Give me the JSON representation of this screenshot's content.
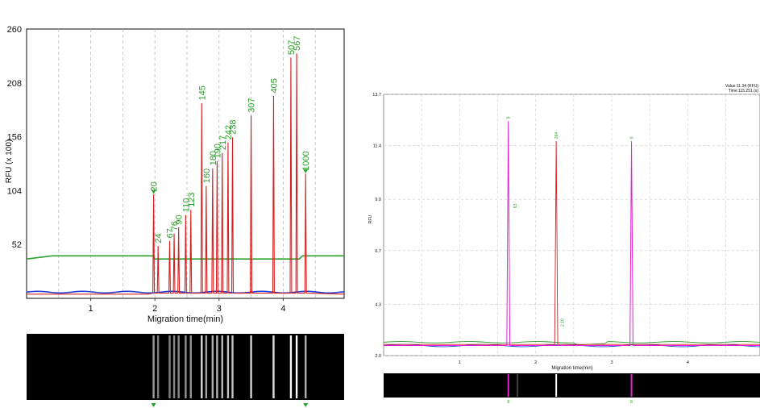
{
  "chart_data": [
    {
      "type": "line",
      "xlabel": "Migration time(min)",
      "ylabel": "RFU (x 100)",
      "xlim": [
        0.0,
        4.95
      ],
      "ylim": [
        0,
        260
      ],
      "y_ticks": [
        "52",
        "104",
        "156",
        "208",
        "260"
      ],
      "x_ticks": [
        "1",
        "2",
        "3",
        "4"
      ],
      "grid": "dashed vertical",
      "series": [
        {
          "color": "#d62020",
          "peaks": [
            {
              "x": 1.98,
              "y": 100,
              "label": "20"
            },
            {
              "x": 2.05,
              "y": 50,
              "label": "24"
            },
            {
              "x": 2.23,
              "y": 55,
              "label": "67"
            },
            {
              "x": 2.3,
              "y": 62,
              "label": "76"
            },
            {
              "x": 2.37,
              "y": 68,
              "label": "90"
            },
            {
              "x": 2.48,
              "y": 80,
              "label": "110"
            },
            {
              "x": 2.56,
              "y": 85,
              "label": "123"
            },
            {
              "x": 2.73,
              "y": 188,
              "label": "145"
            },
            {
              "x": 2.8,
              "y": 108,
              "label": "160"
            },
            {
              "x": 2.9,
              "y": 125,
              "label": "180"
            },
            {
              "x": 2.97,
              "y": 132,
              "label": "190"
            },
            {
              "x": 3.05,
              "y": 140,
              "label": "217"
            },
            {
              "x": 3.14,
              "y": 150,
              "label": "242"
            },
            {
              "x": 3.21,
              "y": 155,
              "label": "238"
            },
            {
              "x": 3.5,
              "y": 176,
              "label": "307"
            },
            {
              "x": 3.85,
              "y": 195,
              "label": "405"
            },
            {
              "x": 4.12,
              "y": 232,
              "label": "507"
            },
            {
              "x": 4.21,
              "y": 236,
              "label": "567"
            },
            {
              "x": 4.35,
              "y": 120,
              "label": "1000"
            }
          ]
        },
        {
          "color": "#2ca02c",
          "baseline": 38,
          "description_level_before_step": 41,
          "step_x": 1.98
        },
        {
          "color": "#1f3fd6",
          "baseline": 6
        }
      ],
      "marker_labels": [
        "20",
        "1000"
      ]
    },
    {
      "type": "line",
      "xlabel": "Migration time(min)",
      "ylabel": "RFU",
      "xlim": [
        0,
        4.95
      ],
      "ylim": [
        2.0,
        13.7
      ],
      "y_ticks": [
        "2.0",
        "4.3",
        "6.7",
        "9.0",
        "11.4",
        "13.7"
      ],
      "x_ticks": [
        "1",
        "2",
        "3",
        "4"
      ],
      "readout": [
        "Value:11.34 (RFU)",
        "Time:115.251 (s)"
      ],
      "series": [
        {
          "color": "#e022d6",
          "peaks": [
            {
              "x": 1.64,
              "y": 12.5,
              "label": "8"
            },
            {
              "x": 3.26,
              "y": 11.6,
              "label": "8"
            }
          ]
        },
        {
          "color": "#d62020",
          "peaks": [
            {
              "x": 2.27,
              "y": 11.6,
              "label": "264"
            }
          ]
        },
        {
          "color": "#2ca02c",
          "baseline": 2.6
        },
        {
          "color": "#1f3fd6",
          "baseline": 2.45
        }
      ],
      "annotations": [
        {
          "x": 1.75,
          "y": 8.6,
          "text": "63"
        },
        {
          "x": 2.37,
          "y": 3.3,
          "text": "2.19"
        }
      ],
      "gel_marks": [
        "8",
        "8"
      ]
    }
  ]
}
